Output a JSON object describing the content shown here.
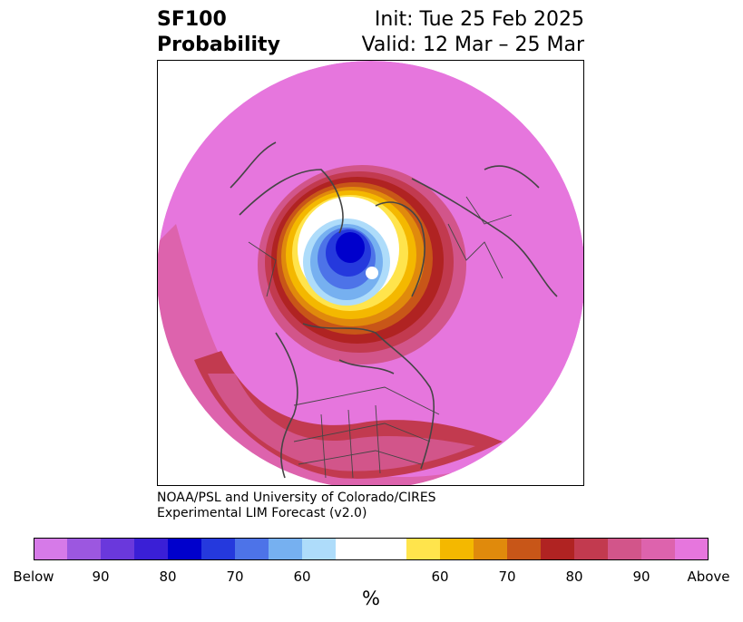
{
  "header": {
    "title_line1": "SF100",
    "title_line2": "Probability",
    "init_text": "Init: Tue 25 Feb 2025",
    "valid_text": "Valid: 12 Mar – 25 Mar"
  },
  "map": {
    "projection": "north-polar-stereographic",
    "features": [
      "coastlines",
      "country-borders",
      "us-state-borders",
      "canada-province-borders"
    ],
    "field": "SF100 probability (%)",
    "pattern": {
      "strong_below_center": "Arctic Ocean north of Canada / Greenland",
      "above_ring": "Eurasia, North Pacific, North Atlantic, Canada edges and United States"
    }
  },
  "credit": {
    "line1": "NOAA/PSL and University of Colorado/CIRES",
    "line2": "Experimental LIM Forecast (v2.0)"
  },
  "colorbar": {
    "colors": [
      "#d67ae8",
      "#9c57e0",
      "#6a38dc",
      "#3a1fd6",
      "#0000cc",
      "#2539dd",
      "#4d73e8",
      "#76b0f0",
      "#aedcfa",
      "#ffffff",
      "#ffe44c",
      "#f4b800",
      "#e08a0c",
      "#c85618",
      "#b02322",
      "#c23a4f",
      "#d2558a",
      "#dd63ad",
      "#e676dd"
    ],
    "tick_labels": [
      "Below",
      "90",
      "80",
      "70",
      "60",
      "60",
      "70",
      "80",
      "90",
      "Above"
    ],
    "unit_label": "%"
  }
}
